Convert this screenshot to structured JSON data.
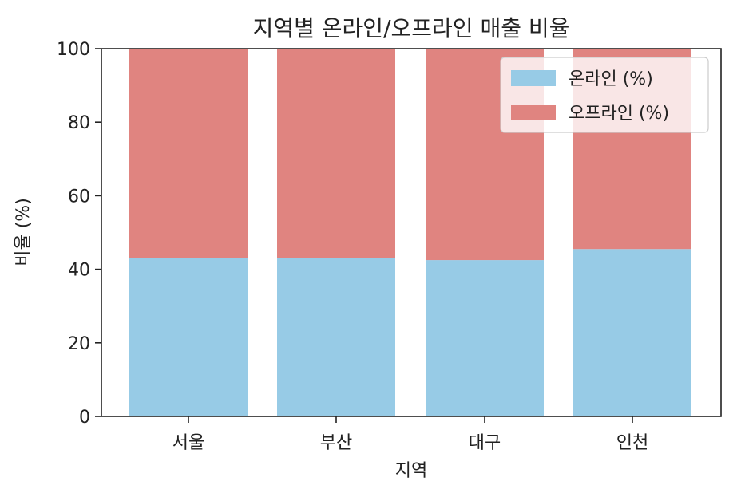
{
  "chart_data": {
    "type": "bar",
    "stacked": true,
    "title": "지역별 온라인/오프라인 매출 비율",
    "xlabel": "지역",
    "ylabel": "비율 (%)",
    "categories": [
      "서울",
      "부산",
      "대구",
      "인천"
    ],
    "series": [
      {
        "name": "온라인 (%)",
        "values": [
          43,
          43,
          42.5,
          45.5
        ],
        "color": "#97cbe6"
      },
      {
        "name": "오프라인 (%)",
        "values": [
          57,
          57,
          57.5,
          54.5
        ],
        "color": "#e08480"
      }
    ],
    "ylim": [
      0,
      100
    ],
    "yticks": [
      "0",
      "20",
      "40",
      "60",
      "80",
      "100"
    ],
    "grid": false,
    "legend_position": "top-right"
  }
}
